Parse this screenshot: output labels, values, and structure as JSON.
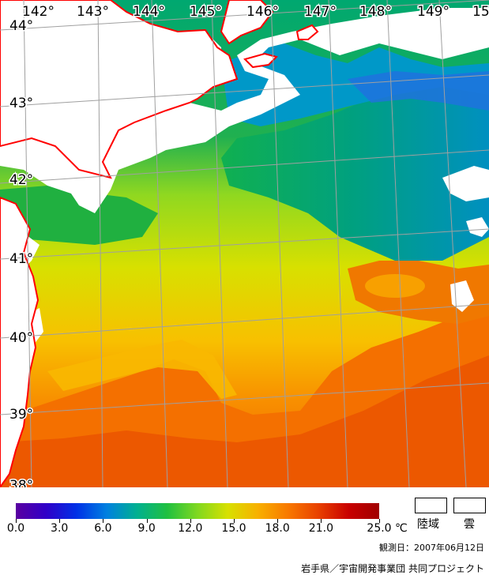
{
  "map": {
    "lat_labels": [
      "44°",
      "43°",
      "42°",
      "41°",
      "40°",
      "39°",
      "38°"
    ],
    "lon_labels": [
      "142°",
      "143°",
      "144°",
      "145°",
      "146°",
      "147°",
      "148°",
      "149°",
      "15"
    ],
    "coastline_color": "#ff0000",
    "grid_color": "#a0a0a0"
  },
  "legend": {
    "ticks": [
      "0.0",
      "3.0",
      "6.0",
      "9.0",
      "12.0",
      "15.0",
      "18.0",
      "21.0",
      "25.0"
    ],
    "min_value": 0,
    "max_value": 25,
    "unit": "℃",
    "land_label": "陸域",
    "cloud_label": "雲",
    "colors": [
      "#5a00a0",
      "#3000c8",
      "#0030e6",
      "#0080e0",
      "#00b090",
      "#20c040",
      "#80d820",
      "#d8e000",
      "#f8b000",
      "#f87800",
      "#e84000",
      "#c80000",
      "#a00000"
    ]
  },
  "observation_date": "観測日：2007年06月12日",
  "credit": "岩手県／宇宙開発事業団 共同プロジェクト"
}
